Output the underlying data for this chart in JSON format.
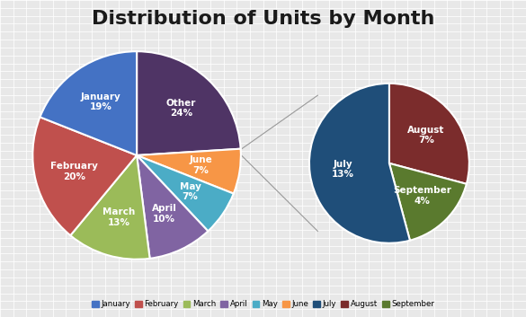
{
  "title": "Distribution of Units by Month",
  "title_fontsize": 16,
  "main_labels": [
    "Other",
    "June",
    "May",
    "April",
    "March",
    "February",
    "January"
  ],
  "main_values": [
    24,
    7,
    7,
    10,
    13,
    20,
    19
  ],
  "main_colors": [
    "#4F3465",
    "#F79646",
    "#4BACC6",
    "#8064A2",
    "#9BBB59",
    "#C0504D",
    "#4472C4"
  ],
  "secondary_labels": [
    "July",
    "August",
    "September"
  ],
  "secondary_values": [
    13,
    7,
    4
  ],
  "secondary_colors": [
    "#1F4E79",
    "#7B2C2C",
    "#5A7A2E"
  ],
  "legend_labels": [
    "January",
    "February",
    "March",
    "April",
    "May",
    "June",
    "July",
    "August",
    "September"
  ],
  "legend_colors": [
    "#4472C4",
    "#C0504D",
    "#9BBB59",
    "#8064A2",
    "#4BACC6",
    "#F79646",
    "#1F4E79",
    "#7B2C2C",
    "#5A7A2E"
  ],
  "bg_color": "#E8E8E8",
  "text_color": "#FFFFFF",
  "main_startangle": 90,
  "secondary_startangle": 90
}
